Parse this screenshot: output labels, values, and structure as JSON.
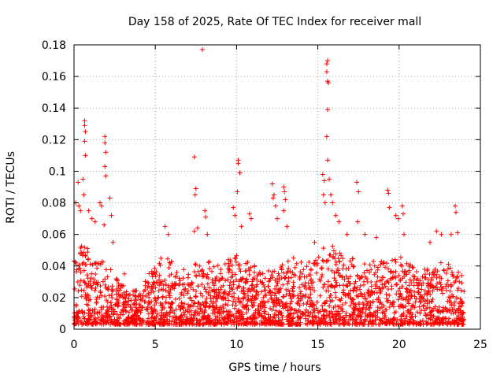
{
  "chart_data": {
    "type": "scatter",
    "title": "Day 158 of 2025, Rate Of TEC Index for receiver mall",
    "xlabel": "GPS time / hours",
    "ylabel": "ROTI / TECUs",
    "xlim": [
      0,
      25
    ],
    "ylim": [
      0,
      0.18
    ],
    "x_ticks": [
      "0",
      "5",
      "10",
      "15",
      "20",
      "25"
    ],
    "y_ticks": [
      "0",
      "0.02",
      "0.04",
      "0.06",
      "0.08",
      "0.1",
      "0.12",
      "0.14",
      "0.16",
      "0.18"
    ],
    "grid": true,
    "marker": "+",
    "color": "#ff0000",
    "envelope": {
      "x": [
        0,
        0.5,
        1,
        1.5,
        2,
        2.5,
        3,
        3.5,
        4,
        4.5,
        5,
        5.5,
        6,
        6.5,
        7,
        7.5,
        8,
        8.5,
        9,
        9.5,
        10,
        10.5,
        11,
        11.5,
        12,
        12.5,
        13,
        13.5,
        14,
        14.5,
        15,
        15.5,
        16,
        16.5,
        17,
        17.5,
        18,
        18.5,
        19,
        19.5,
        20,
        20.5,
        21,
        21.5,
        22,
        22.5,
        23,
        23.5,
        24
      ],
      "y": [
        0.045,
        0.05,
        0.05,
        0.045,
        0.04,
        0.03,
        0.025,
        0.025,
        0.02,
        0.03,
        0.04,
        0.045,
        0.04,
        0.035,
        0.035,
        0.04,
        0.04,
        0.04,
        0.04,
        0.045,
        0.045,
        0.04,
        0.04,
        0.035,
        0.035,
        0.035,
        0.04,
        0.04,
        0.04,
        0.04,
        0.045,
        0.05,
        0.05,
        0.045,
        0.045,
        0.04,
        0.04,
        0.04,
        0.04,
        0.04,
        0.045,
        0.04,
        0.035,
        0.035,
        0.035,
        0.04,
        0.04,
        0.035,
        0.03
      ]
    },
    "outliers": [
      {
        "x": 0.1,
        "y": 0.08
      },
      {
        "x": 0.25,
        "y": 0.093
      },
      {
        "x": 0.3,
        "y": 0.078
      },
      {
        "x": 0.4,
        "y": 0.075
      },
      {
        "x": 0.55,
        "y": 0.095
      },
      {
        "x": 0.6,
        "y": 0.085
      },
      {
        "x": 0.65,
        "y": 0.132
      },
      {
        "x": 0.65,
        "y": 0.129
      },
      {
        "x": 0.7,
        "y": 0.125
      },
      {
        "x": 0.65,
        "y": 0.119
      },
      {
        "x": 0.7,
        "y": 0.11
      },
      {
        "x": 0.9,
        "y": 0.075
      },
      {
        "x": 1.1,
        "y": 0.07
      },
      {
        "x": 1.3,
        "y": 0.068
      },
      {
        "x": 1.6,
        "y": 0.08
      },
      {
        "x": 1.7,
        "y": 0.078
      },
      {
        "x": 1.9,
        "y": 0.122
      },
      {
        "x": 1.9,
        "y": 0.118
      },
      {
        "x": 1.95,
        "y": 0.112
      },
      {
        "x": 1.9,
        "y": 0.103
      },
      {
        "x": 1.95,
        "y": 0.097
      },
      {
        "x": 1.85,
        "y": 0.066
      },
      {
        "x": 2.2,
        "y": 0.083
      },
      {
        "x": 2.3,
        "y": 0.072
      },
      {
        "x": 2.4,
        "y": 0.055
      },
      {
        "x": 3.1,
        "y": 0.035
      },
      {
        "x": 5.6,
        "y": 0.065
      },
      {
        "x": 5.8,
        "y": 0.06
      },
      {
        "x": 7.4,
        "y": 0.109
      },
      {
        "x": 7.5,
        "y": 0.089
      },
      {
        "x": 7.45,
        "y": 0.085
      },
      {
        "x": 7.4,
        "y": 0.062
      },
      {
        "x": 7.6,
        "y": 0.064
      },
      {
        "x": 7.9,
        "y": 0.177
      },
      {
        "x": 8.05,
        "y": 0.075
      },
      {
        "x": 8.1,
        "y": 0.071
      },
      {
        "x": 8.2,
        "y": 0.06
      },
      {
        "x": 9.8,
        "y": 0.077
      },
      {
        "x": 9.9,
        "y": 0.072
      },
      {
        "x": 10.1,
        "y": 0.107
      },
      {
        "x": 10.1,
        "y": 0.105
      },
      {
        "x": 10.2,
        "y": 0.099
      },
      {
        "x": 10.05,
        "y": 0.087
      },
      {
        "x": 10.3,
        "y": 0.065
      },
      {
        "x": 10.8,
        "y": 0.073
      },
      {
        "x": 10.9,
        "y": 0.07
      },
      {
        "x": 12.2,
        "y": 0.092
      },
      {
        "x": 12.3,
        "y": 0.085
      },
      {
        "x": 12.25,
        "y": 0.083
      },
      {
        "x": 12.4,
        "y": 0.078
      },
      {
        "x": 12.5,
        "y": 0.07
      },
      {
        "x": 12.9,
        "y": 0.09
      },
      {
        "x": 12.95,
        "y": 0.087
      },
      {
        "x": 13.0,
        "y": 0.082
      },
      {
        "x": 12.9,
        "y": 0.075
      },
      {
        "x": 13.1,
        "y": 0.065
      },
      {
        "x": 13.5,
        "y": 0.045
      },
      {
        "x": 14.8,
        "y": 0.055
      },
      {
        "x": 15.3,
        "y": 0.098
      },
      {
        "x": 15.4,
        "y": 0.094
      },
      {
        "x": 15.35,
        "y": 0.085
      },
      {
        "x": 15.45,
        "y": 0.08
      },
      {
        "x": 15.55,
        "y": 0.168
      },
      {
        "x": 15.6,
        "y": 0.17
      },
      {
        "x": 15.55,
        "y": 0.163
      },
      {
        "x": 15.6,
        "y": 0.157
      },
      {
        "x": 15.65,
        "y": 0.156
      },
      {
        "x": 15.6,
        "y": 0.139
      },
      {
        "x": 15.55,
        "y": 0.122
      },
      {
        "x": 15.6,
        "y": 0.107
      },
      {
        "x": 15.7,
        "y": 0.095
      },
      {
        "x": 15.8,
        "y": 0.085
      },
      {
        "x": 15.9,
        "y": 0.08
      },
      {
        "x": 16.1,
        "y": 0.072
      },
      {
        "x": 16.3,
        "y": 0.068
      },
      {
        "x": 16.8,
        "y": 0.06
      },
      {
        "x": 17.4,
        "y": 0.093
      },
      {
        "x": 17.5,
        "y": 0.087
      },
      {
        "x": 17.45,
        "y": 0.068
      },
      {
        "x": 17.9,
        "y": 0.06
      },
      {
        "x": 18.6,
        "y": 0.058
      },
      {
        "x": 19.3,
        "y": 0.088
      },
      {
        "x": 19.35,
        "y": 0.086
      },
      {
        "x": 19.4,
        "y": 0.077
      },
      {
        "x": 19.8,
        "y": 0.072
      },
      {
        "x": 19.95,
        "y": 0.07
      },
      {
        "x": 20.2,
        "y": 0.078
      },
      {
        "x": 20.25,
        "y": 0.073
      },
      {
        "x": 20.3,
        "y": 0.06
      },
      {
        "x": 21.9,
        "y": 0.055
      },
      {
        "x": 22.3,
        "y": 0.062
      },
      {
        "x": 22.6,
        "y": 0.06
      },
      {
        "x": 23.2,
        "y": 0.06
      },
      {
        "x": 23.45,
        "y": 0.078
      },
      {
        "x": 23.5,
        "y": 0.074
      },
      {
        "x": 23.6,
        "y": 0.061
      }
    ]
  }
}
